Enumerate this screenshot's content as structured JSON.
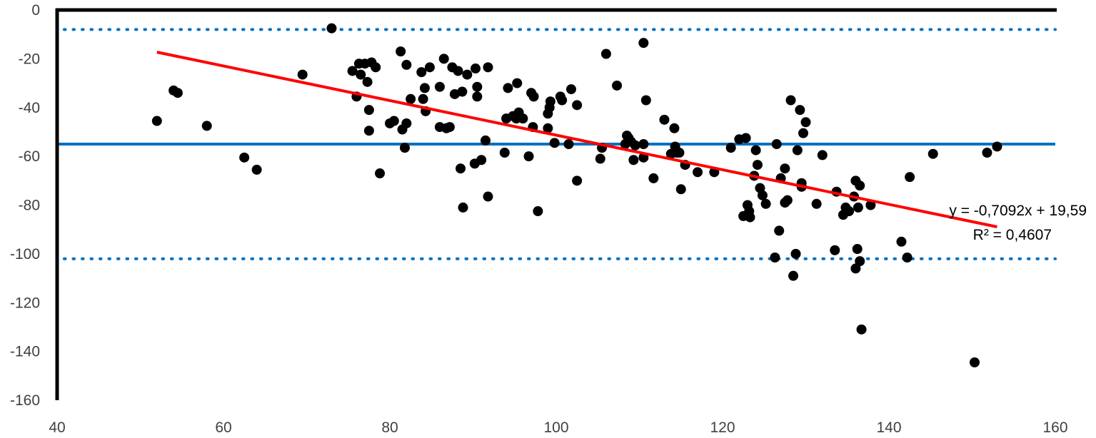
{
  "chart_data": {
    "type": "scatter",
    "title": "",
    "xlabel": "",
    "ylabel": "",
    "xlim": [
      40,
      160
    ],
    "ylim": [
      -160,
      0
    ],
    "x_ticks": [
      40,
      60,
      80,
      100,
      120,
      140,
      160
    ],
    "y_ticks": [
      0,
      -20,
      -40,
      -60,
      -80,
      -100,
      -120,
      -140,
      -160
    ],
    "grid": false,
    "legend": "none",
    "colors": {
      "points": "#000000",
      "trendline": "#ff0000",
      "mean_line": "#0070c0",
      "limit_lines": "#0070c0"
    },
    "reference_lines": {
      "mean": -55,
      "upper_limit": -8,
      "lower_limit": -102
    },
    "trendline": {
      "slope": -0.7092,
      "intercept": 19.59,
      "x_range": [
        52,
        153
      ],
      "equation_text": "y = -0,7092x + 19,59",
      "r2_text": "R² = 0,4607"
    },
    "points": [
      [
        52,
        -45.5
      ],
      [
        54,
        -33
      ],
      [
        54.5,
        -34
      ],
      [
        58,
        -47.5
      ],
      [
        62.5,
        -60.5
      ],
      [
        64,
        -65.5
      ],
      [
        69.5,
        -26.5
      ],
      [
        73,
        -7.5
      ],
      [
        75.5,
        -25
      ],
      [
        76,
        -35.5
      ],
      [
        76.3,
        -22
      ],
      [
        76.5,
        -26.5
      ],
      [
        77,
        -22
      ],
      [
        77.3,
        -29.5
      ],
      [
        77.5,
        -41
      ],
      [
        77.5,
        -49.5
      ],
      [
        77.8,
        -21.5
      ],
      [
        78.3,
        -23.5
      ],
      [
        78.8,
        -67
      ],
      [
        80,
        -46.5
      ],
      [
        80.5,
        -45.5
      ],
      [
        81.3,
        -17
      ],
      [
        81.5,
        -49
      ],
      [
        81.8,
        -56.5
      ],
      [
        82,
        -22.5
      ],
      [
        82,
        -46.5
      ],
      [
        82.5,
        -36.5
      ],
      [
        83.8,
        -25.5
      ],
      [
        84,
        -36.5
      ],
      [
        84.2,
        -32
      ],
      [
        84.3,
        -41.5
      ],
      [
        84.8,
        -23.5
      ],
      [
        86,
        -31.5
      ],
      [
        86,
        -48
      ],
      [
        86.5,
        -20
      ],
      [
        86.8,
        -48.5
      ],
      [
        87.2,
        -48
      ],
      [
        87.5,
        -23.5
      ],
      [
        87.8,
        -34.5
      ],
      [
        88.2,
        -25
      ],
      [
        88.5,
        -65
      ],
      [
        88.7,
        -33.5
      ],
      [
        88.8,
        -81
      ],
      [
        89.3,
        -26.5
      ],
      [
        90.2,
        -63
      ],
      [
        90.3,
        -24
      ],
      [
        90.5,
        -31.5
      ],
      [
        90.5,
        -35.5
      ],
      [
        91,
        -61.5
      ],
      [
        91.5,
        -53.5
      ],
      [
        91.8,
        -23.5
      ],
      [
        91.8,
        -76.5
      ],
      [
        93.8,
        -58.5
      ],
      [
        94,
        -44.5
      ],
      [
        94.2,
        -32
      ],
      [
        94.8,
        -43.5
      ],
      [
        95.2,
        -44.5
      ],
      [
        95.3,
        -30
      ],
      [
        95.5,
        -42
      ],
      [
        96,
        -44.5
      ],
      [
        96.7,
        -60
      ],
      [
        97,
        -34
      ],
      [
        97.2,
        -48
      ],
      [
        97.3,
        -35.5
      ],
      [
        97.8,
        -82.5
      ],
      [
        99,
        -42.5
      ],
      [
        99,
        -48.5
      ],
      [
        99.2,
        -40
      ],
      [
        99.3,
        -37.5
      ],
      [
        99.8,
        -54.5
      ],
      [
        100.5,
        -35.5
      ],
      [
        100.7,
        -37
      ],
      [
        101.5,
        -55
      ],
      [
        101.8,
        -32.5
      ],
      [
        102.5,
        -39
      ],
      [
        102.5,
        -70
      ],
      [
        105.3,
        -61
      ],
      [
        105.5,
        -56.5
      ],
      [
        106,
        -18
      ],
      [
        107.3,
        -31
      ],
      [
        108.3,
        -55
      ],
      [
        108.5,
        -51.5
      ],
      [
        108.7,
        -52.5
      ],
      [
        109,
        -54
      ],
      [
        109.3,
        -61.5
      ],
      [
        109.5,
        -55.5
      ],
      [
        110.5,
        -13.5
      ],
      [
        110.5,
        -60.5
      ],
      [
        110.5,
        -55
      ],
      [
        110.8,
        -37
      ],
      [
        111.7,
        -69
      ],
      [
        113,
        -45
      ],
      [
        113.8,
        -59
      ],
      [
        114.2,
        -48.5
      ],
      [
        114.3,
        -56
      ],
      [
        114.5,
        -58.5
      ],
      [
        114.8,
        -58.5
      ],
      [
        115,
        -73.5
      ],
      [
        115.5,
        -63.5
      ],
      [
        117,
        -66.5
      ],
      [
        119,
        -66.5
      ],
      [
        121,
        -56.5
      ],
      [
        122,
        -53
      ],
      [
        122.5,
        -84.5
      ],
      [
        122.8,
        -52.5
      ],
      [
        123,
        -80
      ],
      [
        123.2,
        -82.5
      ],
      [
        123.3,
        -85
      ],
      [
        123.8,
        -68
      ],
      [
        124,
        -57.5
      ],
      [
        124.2,
        -63.5
      ],
      [
        124.5,
        -73
      ],
      [
        124.8,
        -76
      ],
      [
        125.2,
        -79.5
      ],
      [
        126.3,
        -101.5
      ],
      [
        126.5,
        -55
      ],
      [
        126.8,
        -90.5
      ],
      [
        127,
        -69
      ],
      [
        127.5,
        -65
      ],
      [
        127.5,
        -79
      ],
      [
        127.8,
        -78
      ],
      [
        128.2,
        -37
      ],
      [
        128.5,
        -109
      ],
      [
        128.8,
        -100
      ],
      [
        129,
        -57.5
      ],
      [
        129.3,
        -41
      ],
      [
        129.5,
        -71
      ],
      [
        129.5,
        -72.5
      ],
      [
        129.7,
        -50.5
      ],
      [
        130,
        -46
      ],
      [
        131.3,
        -79.5
      ],
      [
        132,
        -59.5
      ],
      [
        133.5,
        -98.5
      ],
      [
        133.7,
        -74.5
      ],
      [
        134.5,
        -84
      ],
      [
        134.8,
        -81
      ],
      [
        135.2,
        -82.5
      ],
      [
        135.8,
        -76.5
      ],
      [
        136,
        -70
      ],
      [
        136,
        -106
      ],
      [
        136.2,
        -98
      ],
      [
        136.3,
        -81
      ],
      [
        136.5,
        -72
      ],
      [
        136.5,
        -103
      ],
      [
        136.7,
        -131
      ],
      [
        137.8,
        -80
      ],
      [
        141.5,
        -95
      ],
      [
        142.2,
        -101.5
      ],
      [
        142.5,
        -68.5
      ],
      [
        145.3,
        -59
      ],
      [
        150.3,
        -144.5
      ],
      [
        151.8,
        -58.5
      ],
      [
        153,
        -56
      ]
    ]
  }
}
